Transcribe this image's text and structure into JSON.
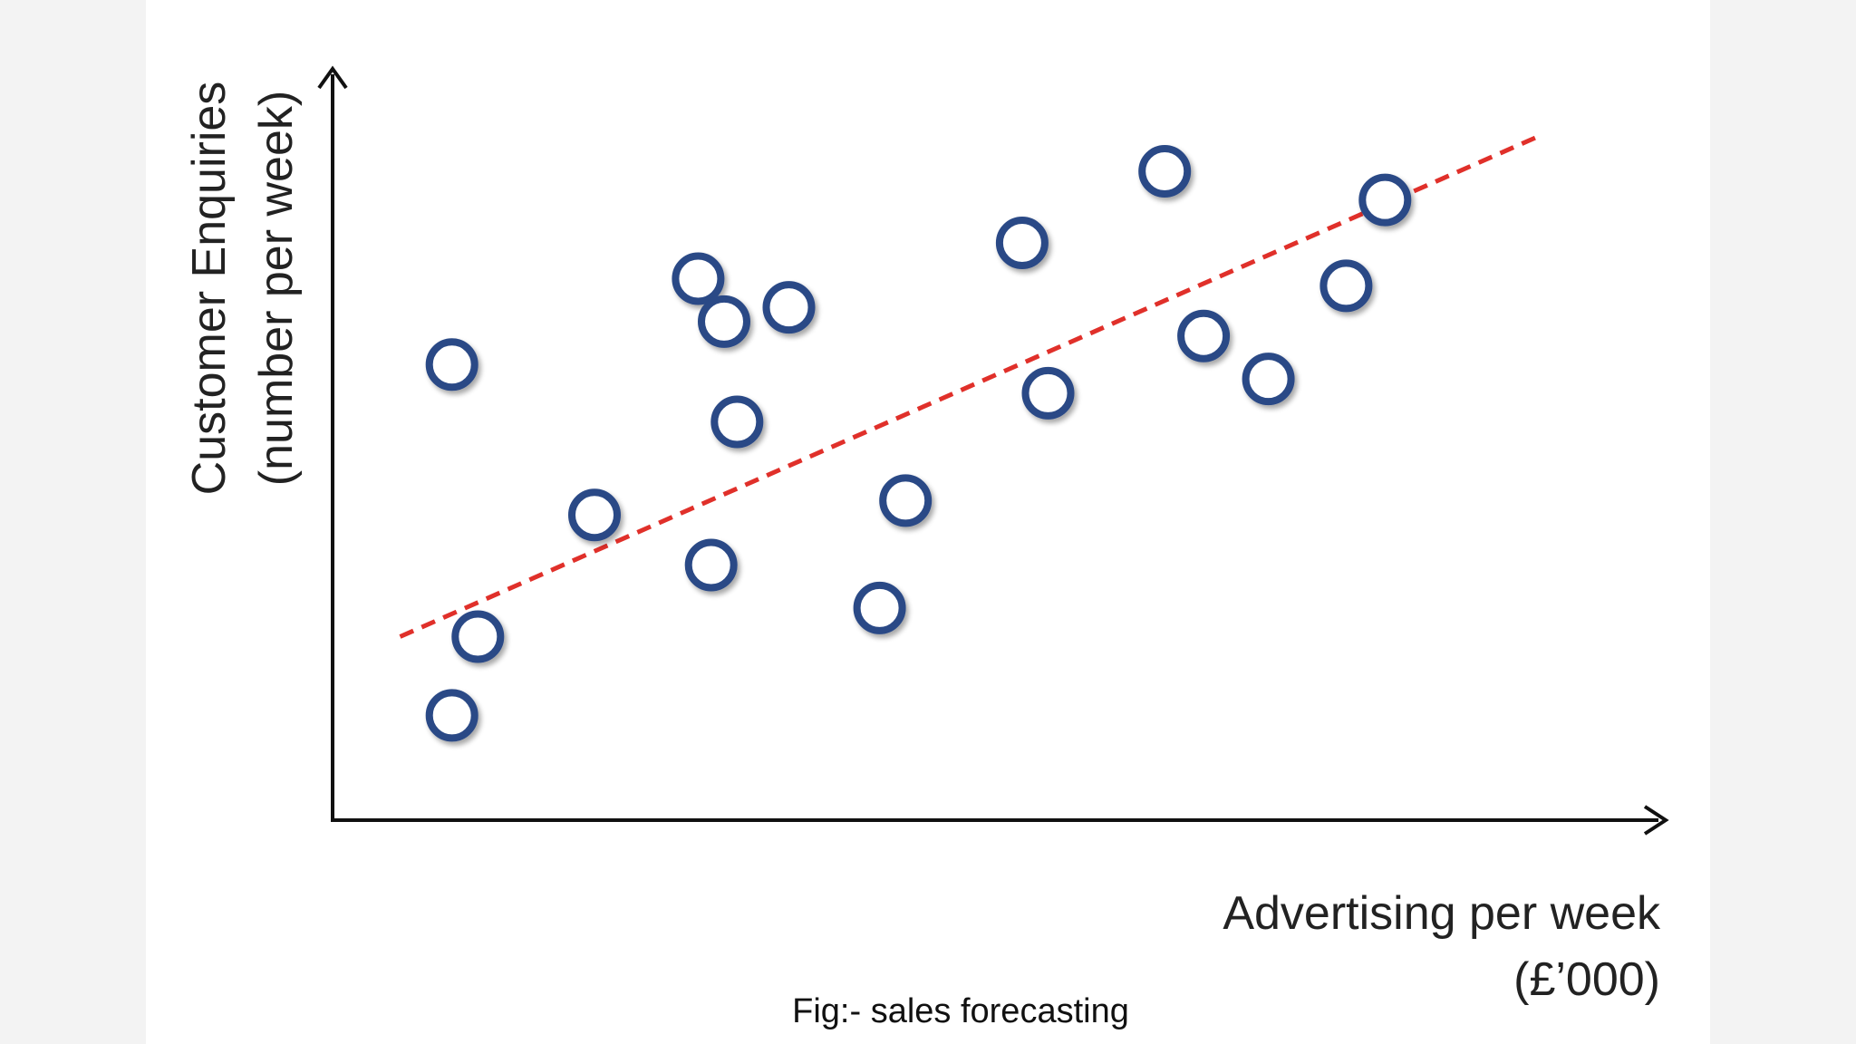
{
  "figure": {
    "caption": "Fig:- sales forecasting"
  },
  "chart_data": {
    "type": "scatter",
    "title": "",
    "xlabel_lines": [
      "Advertising per week",
      "(£’000)"
    ],
    "ylabel_lines": [
      "Customer Enquiries",
      "(number per week)"
    ],
    "xlim": [
      0,
      100
    ],
    "ylim": [
      0,
      100
    ],
    "grid": false,
    "legend": "none",
    "axis_color": "#111111",
    "marker_color": "#2c4a86",
    "trend_color": "#e0302a",
    "points": [
      {
        "x": 9,
        "y": 63
      },
      {
        "x": 9,
        "y": 14
      },
      {
        "x": 11,
        "y": 25
      },
      {
        "x": 20,
        "y": 42
      },
      {
        "x": 28,
        "y": 75
      },
      {
        "x": 30,
        "y": 69
      },
      {
        "x": 31,
        "y": 55
      },
      {
        "x": 29,
        "y": 35
      },
      {
        "x": 35,
        "y": 71
      },
      {
        "x": 42,
        "y": 29
      },
      {
        "x": 44,
        "y": 44
      },
      {
        "x": 53,
        "y": 80
      },
      {
        "x": 55,
        "y": 59
      },
      {
        "x": 64,
        "y": 90
      },
      {
        "x": 67,
        "y": 67
      },
      {
        "x": 72,
        "y": 61
      },
      {
        "x": 78,
        "y": 74
      },
      {
        "x": 81,
        "y": 86
      }
    ],
    "trendline": {
      "x": [
        5,
        93
      ],
      "y": [
        25,
        95
      ],
      "style": "dashed"
    }
  }
}
